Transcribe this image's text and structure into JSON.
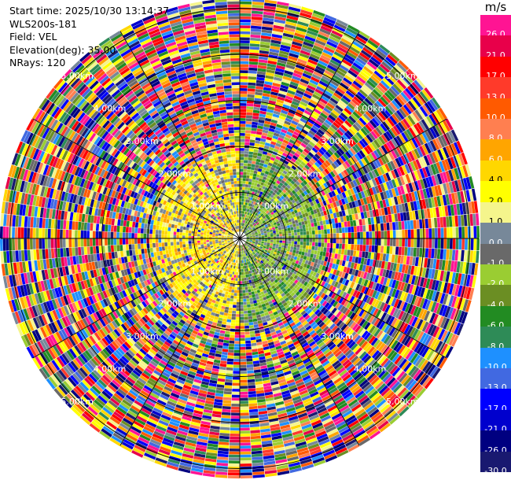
{
  "info": {
    "start_time": "Start time: 2025/10/30 13:14:37",
    "station": "WLS200s-181",
    "field": "Field: VEL",
    "elevation": "Elevation(deg): 35.00",
    "nrays": "NRays: 120"
  },
  "colorbar": {
    "unit": "m/s",
    "levels": [
      {
        "label": "26.0",
        "color": "#ff1493"
      },
      {
        "label": "21.0",
        "color": "#e8004a"
      },
      {
        "label": "17.0",
        "color": "#ff0000"
      },
      {
        "label": "13.0",
        "color": "#ff3a2a"
      },
      {
        "label": "10.0",
        "color": "#ff5a00"
      },
      {
        "label": "8.0",
        "color": "#ff7f50"
      },
      {
        "label": "6.0",
        "color": "#ffa500"
      },
      {
        "label": "4.0",
        "color": "#ffd700"
      },
      {
        "label": "2.0",
        "color": "#ffff00"
      },
      {
        "label": "1.0",
        "color": "#f5f58c"
      },
      {
        "label": "0.0",
        "color": "#778899"
      },
      {
        "label": "-1.0",
        "color": "#696969"
      },
      {
        "label": "-2.0",
        "color": "#9acd32"
      },
      {
        "label": "-4.0",
        "color": "#6b8e23"
      },
      {
        "label": "-6.0",
        "color": "#228b22"
      },
      {
        "label": "-8.0",
        "color": "#2e8b57"
      },
      {
        "label": "-10.0",
        "color": "#1e90ff"
      },
      {
        "label": "-13.0",
        "color": "#4169e1"
      },
      {
        "label": "-17.0",
        "color": "#0000ff"
      },
      {
        "label": "-21.0",
        "color": "#0000cd"
      },
      {
        "label": "-26.0",
        "color": "#000080"
      },
      {
        "label": "-30.0",
        "color": "#191970"
      }
    ]
  },
  "chart_data": {
    "type": "heatmap",
    "projection": "polar PPI",
    "field": "VEL",
    "units": "m/s",
    "elevation_deg": 35.0,
    "n_rays": 120,
    "range_rings_km": [
      1,
      2,
      3,
      4,
      5
    ],
    "ring_labels": [
      "1.00km",
      "2.00km",
      "3.00km",
      "4.00km",
      "5.00km"
    ],
    "max_range_km": 5.2,
    "spokes_deg": [
      0,
      30,
      60,
      90,
      120,
      150,
      180,
      210,
      240,
      270,
      300,
      330
    ],
    "inner_zone": {
      "outer_km": 2.0,
      "yellow_sector_deg": [
        180,
        360
      ],
      "green_sector_deg": [
        0,
        180
      ]
    },
    "grid": true
  }
}
